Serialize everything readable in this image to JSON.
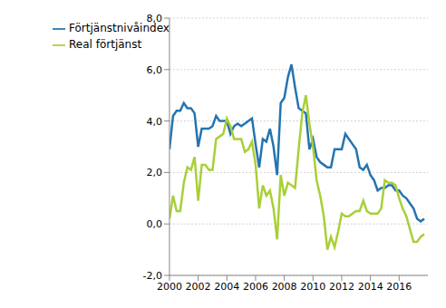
{
  "chart_data": {
    "type": "line",
    "x": [
      2000,
      2000.25,
      2000.5,
      2000.75,
      2001,
      2001.25,
      2001.5,
      2001.75,
      2002,
      2002.25,
      2002.5,
      2002.75,
      2003,
      2003.25,
      2003.5,
      2003.75,
      2004,
      2004.25,
      2004.5,
      2004.75,
      2005,
      2005.25,
      2005.5,
      2005.75,
      2006,
      2006.25,
      2006.5,
      2006.75,
      2007,
      2007.25,
      2007.5,
      2007.75,
      2008,
      2008.25,
      2008.5,
      2008.75,
      2009,
      2009.25,
      2009.5,
      2009.75,
      2010,
      2010.25,
      2010.5,
      2010.75,
      2011,
      2011.25,
      2011.5,
      2011.75,
      2012,
      2012.25,
      2012.5,
      2012.75,
      2013,
      2013.25,
      2013.5,
      2013.75,
      2014,
      2014.25,
      2014.5,
      2014.75,
      2015,
      2015.25,
      2015.5,
      2015.75,
      2016,
      2016.25,
      2016.5,
      2016.75,
      2017,
      2017.25,
      2017.5,
      2017.75
    ],
    "series": [
      {
        "name": "Förtjänstnivåindex",
        "color": "#2474b0",
        "values": [
          2.9,
          4.2,
          4.4,
          4.4,
          4.7,
          4.5,
          4.5,
          4.3,
          3.0,
          3.7,
          3.7,
          3.7,
          3.8,
          4.2,
          4.0,
          4.0,
          4.0,
          3.5,
          3.8,
          3.9,
          3.8,
          3.9,
          4.0,
          4.1,
          3.1,
          2.2,
          3.3,
          3.2,
          3.7,
          3.0,
          1.9,
          4.7,
          4.9,
          5.7,
          6.2,
          5.3,
          4.5,
          4.4,
          4.3,
          2.9,
          3.3,
          2.6,
          2.4,
          2.3,
          2.2,
          2.2,
          2.9,
          2.9,
          2.9,
          3.5,
          3.3,
          3.1,
          2.9,
          2.2,
          2.1,
          2.3,
          1.9,
          1.7,
          1.3,
          1.4,
          1.4,
          1.5,
          1.5,
          1.3,
          1.3,
          1.1,
          1.0,
          0.8,
          0.6,
          0.2,
          0.1,
          0.2
        ]
      },
      {
        "name": "Real förtjänst",
        "color": "#a9cf38",
        "values": [
          0.2,
          1.1,
          0.5,
          0.5,
          1.6,
          2.2,
          2.1,
          2.6,
          0.9,
          2.3,
          2.3,
          2.1,
          2.1,
          3.3,
          3.4,
          3.5,
          4.1,
          3.8,
          3.3,
          3.3,
          3.3,
          2.8,
          2.9,
          3.2,
          2.3,
          0.6,
          1.5,
          1.1,
          1.3,
          0.6,
          -0.6,
          1.9,
          1.1,
          1.6,
          1.5,
          1.4,
          2.9,
          4.3,
          5.0,
          3.9,
          3.0,
          1.7,
          1.1,
          0.3,
          -1.0,
          -0.5,
          -0.9,
          -0.3,
          0.4,
          0.3,
          0.3,
          0.4,
          0.5,
          0.5,
          0.9,
          0.5,
          0.4,
          0.4,
          0.4,
          0.6,
          1.7,
          1.6,
          1.6,
          1.5,
          1.0,
          0.6,
          0.3,
          -0.2,
          -0.7,
          -0.7,
          -0.5,
          -0.4
        ]
      }
    ],
    "xlim": [
      2000,
      2018
    ],
    "xticks": [
      2000,
      2002,
      2004,
      2006,
      2008,
      2010,
      2012,
      2014,
      2016
    ],
    "ylim": [
      -2,
      8
    ],
    "yticks": [
      {
        "value": -2,
        "label": "-2,0"
      },
      {
        "value": 0,
        "label": "0,0"
      },
      {
        "value": 2,
        "label": "2,0"
      },
      {
        "value": 4,
        "label": "4,0"
      },
      {
        "value": 6,
        "label": "6,0"
      },
      {
        "value": 8,
        "label": "8,0"
      }
    ],
    "grid": true,
    "legend": "top-left"
  }
}
